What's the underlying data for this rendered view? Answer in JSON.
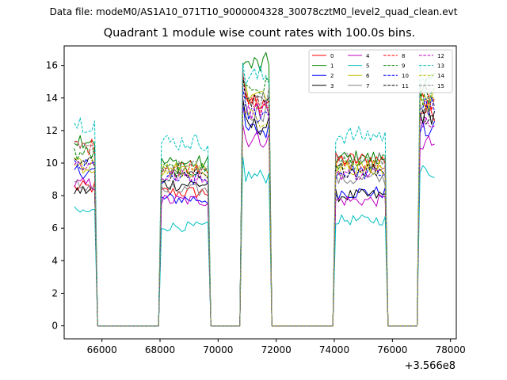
{
  "header": {
    "data_file_text": "Data file: modeM0/AS1A10_071T10_9000004328_30078cztM0_level2_quad_clean.evt"
  },
  "chart_data": {
    "type": "line",
    "title": "Quadrant 1 module wise count rates with 100.0s bins.",
    "xlabel": "",
    "ylabel": "",
    "x_offset_label": "+3.566e8",
    "xlim": [
      64700,
      78200
    ],
    "ylim": [
      -0.8,
      17.2
    ],
    "x_ticks": [
      66000,
      68000,
      70000,
      72000,
      74000,
      76000,
      78000
    ],
    "x_tick_labels": [
      "66000",
      "68000",
      "70000",
      "72000",
      "74000",
      "76000",
      "78000"
    ],
    "y_ticks": [
      0,
      2,
      4,
      6,
      8,
      10,
      12,
      14,
      16
    ],
    "y_tick_labels": [
      "0",
      "2",
      "4",
      "6",
      "8",
      "10",
      "12",
      "14",
      "16"
    ],
    "grid": false,
    "legend_position": "top-right",
    "legend_columns": 4,
    "segments": [
      {
        "start": 65050,
        "end": 65750
      },
      {
        "start": 68050,
        "end": 69650
      },
      {
        "start": 70850,
        "end": 71750
      },
      {
        "start": 74050,
        "end": 75750
      },
      {
        "start": 76950,
        "end": 77450
      }
    ],
    "gaps": [
      {
        "start": 65850,
        "end": 67950
      },
      {
        "start": 69750,
        "end": 70750
      },
      {
        "start": 71850,
        "end": 73950
      },
      {
        "start": 75850,
        "end": 76850
      }
    ],
    "series": [
      {
        "name": "0",
        "color": "#ff0000",
        "dash": "solid",
        "levels": [
          8.5,
          8.2,
          13.8,
          10.2,
          13.2
        ]
      },
      {
        "name": "1",
        "color": "#008000",
        "dash": "solid",
        "levels": [
          11.5,
          10.0,
          16.0,
          10.3,
          14.8
        ]
      },
      {
        "name": "2",
        "color": "#0000ff",
        "dash": "solid",
        "levels": [
          9.5,
          7.8,
          12.0,
          8.2,
          12.0
        ]
      },
      {
        "name": "3",
        "color": "#000000",
        "dash": "solid",
        "levels": [
          8.3,
          8.7,
          12.3,
          8.0,
          13.0
        ]
      },
      {
        "name": "4",
        "color": "#c000c0",
        "dash": "solid",
        "levels": [
          8.7,
          7.7,
          11.5,
          7.7,
          11.2
        ]
      },
      {
        "name": "5",
        "color": "#00bfbf",
        "dash": "solid",
        "levels": [
          7.0,
          6.1,
          9.2,
          6.5,
          9.5
        ]
      },
      {
        "name": "6",
        "color": "#bfbf00",
        "dash": "solid",
        "levels": [
          9.8,
          9.6,
          14.5,
          9.7,
          14.0
        ]
      },
      {
        "name": "7",
        "color": "#808080",
        "dash": "solid",
        "levels": [
          8.6,
          8.3,
          13.2,
          9.0,
          13.5
        ]
      },
      {
        "name": "8",
        "color": "#ff0000",
        "dash": "dashed",
        "levels": [
          11.0,
          9.8,
          13.5,
          10.0,
          13.8
        ]
      },
      {
        "name": "9",
        "color": "#008000",
        "dash": "dashed",
        "levels": [
          10.6,
          9.6,
          14.6,
          10.0,
          14.2
        ]
      },
      {
        "name": "10",
        "color": "#0000ff",
        "dash": "dashed",
        "levels": [
          9.8,
          9.0,
          13.0,
          9.4,
          13.5
        ]
      },
      {
        "name": "11",
        "color": "#000000",
        "dash": "dashed",
        "levels": [
          9.9,
          9.3,
          13.6,
          9.6,
          13.0
        ]
      },
      {
        "name": "12",
        "color": "#c000c0",
        "dash": "dashed",
        "levels": [
          9.9,
          9.2,
          13.3,
          9.4,
          12.8
        ]
      },
      {
        "name": "13",
        "color": "#00bfbf",
        "dash": "dashed",
        "levels": [
          12.5,
          11.3,
          15.3,
          11.7,
          15.6
        ]
      },
      {
        "name": "14",
        "color": "#bfbf00",
        "dash": "dashed",
        "levels": [
          9.9,
          9.6,
          12.8,
          9.8,
          13.5
        ]
      },
      {
        "name": "15",
        "color": "#808080",
        "dash": "dashed",
        "levels": [
          10.8,
          9.7,
          14.0,
          10.2,
          14.5
        ]
      }
    ]
  }
}
